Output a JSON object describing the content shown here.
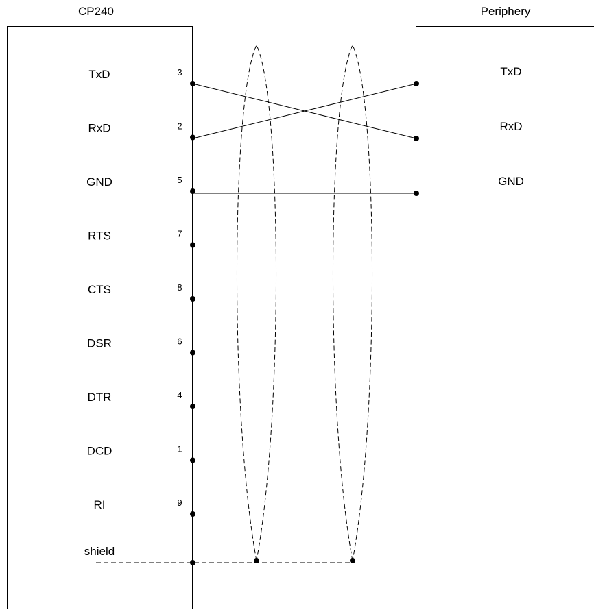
{
  "left_device": {
    "title": "CP240"
  },
  "right_device": {
    "title": "Periphery"
  },
  "left_signals": [
    {
      "label": "TxD",
      "pin": "3"
    },
    {
      "label": "RxD",
      "pin": "2"
    },
    {
      "label": "GND",
      "pin": "5"
    },
    {
      "label": "RTS",
      "pin": "7"
    },
    {
      "label": "CTS",
      "pin": "8"
    },
    {
      "label": "DSR",
      "pin": "6"
    },
    {
      "label": "DTR",
      "pin": "4"
    },
    {
      "label": "DCD",
      "pin": "1"
    },
    {
      "label": "RI",
      "pin": "9"
    }
  ],
  "right_signals": [
    "TxD",
    "RxD",
    "GND"
  ],
  "shield_label": "shield",
  "connections": [
    {
      "from": "TxD",
      "to": "RxD"
    },
    {
      "from": "RxD",
      "to": "TxD"
    },
    {
      "from": "GND",
      "to": "GND"
    }
  ]
}
